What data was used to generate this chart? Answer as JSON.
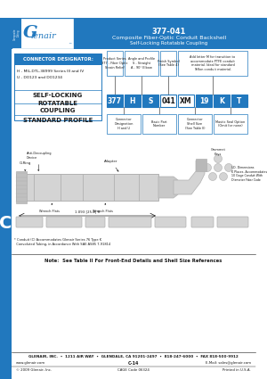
{
  "title_number": "377-041",
  "title_line1": "Composite Fiber-Optic Conduit Backshell",
  "title_line2": "Self-Locking Rotatable Coupling",
  "header_bg": "#2178be",
  "header_text_color": "#ffffff",
  "sidebar_bg": "#2178be",
  "connector_designator_label": "CONNECTOR DESIGNATOR:",
  "h_item": "H - MIL-DTL-38999 Series III and IV",
  "u_item": "U - DO123 and DO1234",
  "feature1": "SELF-LOCKING",
  "feature2": "ROTATABLE\nCOUPLING",
  "feature3": "STANDARD PROFILE",
  "pn_boxes": [
    "377",
    "H",
    "S",
    "041",
    "XM",
    "19",
    "K",
    "T"
  ],
  "pn_blue": [
    true,
    true,
    true,
    false,
    false,
    true,
    true,
    true
  ],
  "note_text": "Note:  See Table II For Front-End Details and Shell Size References",
  "footer_company": "GLENAIR, INC.  •  1211 AIR WAY  •  GLENDALE, CA 91201-2497  •  818-247-6000  •  FAX 818-500-9912",
  "footer_web": "www.glenair.com",
  "footer_page": "C-14",
  "footer_email": "E-Mail: sales@glenair.com",
  "copyright": "© 2009 Glenair, Inc.",
  "cage": "CAGE Code 06324",
  "printed": "Printed in U.S.A.",
  "sidebar_letter": "C",
  "diagram_note": "* Conduit (C) Accommodates Glenair Series 76 Type K\n  Convoluted Tubing, in Accordance With SAE-AS85 7-91814",
  "bg_color": "#ffffff",
  "dark": "#1a1a1a",
  "blue": "#2178be",
  "light_gray": "#d4d4d4",
  "mid_gray": "#b0b0b0"
}
